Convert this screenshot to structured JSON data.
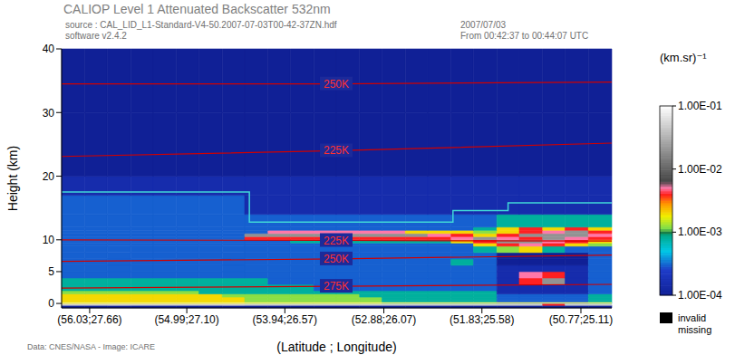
{
  "chart_data": {
    "type": "heatmap",
    "title": "CALIOP Level 1 Attenuated Backscatter 532nm",
    "subtitle": "source : CAL_LID_L1-Standard-V4-50.2007-07-03T00-42-37ZN.hdf",
    "annotations": [
      "software v2.4.2",
      "2007/07/03",
      "From 00:42:37 to 00:44:07 UTC",
      "Data: CNES/NASA - Image: ICARE"
    ],
    "x_label": "(Latitude ; Longitude)",
    "y_label": "Height (km)",
    "xlim": [
      56.33,
      50.44
    ],
    "xticks": [
      {
        "value": 56.03,
        "label": "(56.03;27.66)"
      },
      {
        "value": 54.99,
        "label": "(54.99;27.10)"
      },
      {
        "value": 53.94,
        "label": "(53.94;26.57)"
      },
      {
        "value": 52.88,
        "label": "(52.88;26.07)"
      },
      {
        "value": 51.83,
        "label": "(51.83;25.58)"
      },
      {
        "value": 50.77,
        "label": "(50.77;25.11)"
      }
    ],
    "ylim": [
      -0.7,
      40
    ],
    "yticks": [
      0,
      5,
      10,
      20,
      30,
      40
    ],
    "x_edges": [
      56.33,
      56.08,
      55.84,
      55.59,
      55.35,
      55.1,
      54.86,
      54.61,
      54.37,
      54.12,
      53.88,
      53.63,
      53.39,
      53.14,
      52.9,
      52.65,
      52.41,
      52.16,
      51.92,
      51.67,
      51.43,
      51.18,
      50.94,
      50.69,
      50.44
    ],
    "y_edges": [
      -0.7,
      -0.3,
      0,
      0.5,
      1,
      1.5,
      2,
      3,
      4,
      5,
      6,
      7,
      8,
      9,
      9.5,
      10,
      10.5,
      11,
      11.5,
      12,
      14,
      17,
      20,
      30,
      40
    ],
    "cells": [
      [
        0.0001,
        0.0001,
        0.0001,
        0.0001,
        0.0001,
        0.0001,
        0.0001,
        0.0001,
        0.0001,
        0.0001,
        0.0001,
        0.0001,
        0.0001,
        0.0001,
        0.0001,
        0.0001,
        0.0001,
        0.0001,
        0.0001,
        0.0001,
        0.0001,
        0.0001,
        0.0001,
        0.0001
      ],
      [
        0.05,
        0.05,
        0.05,
        0.05,
        0.05,
        0.05,
        0.05,
        0.05,
        0.05,
        0.05,
        0.05,
        0.05,
        0.05,
        0.05,
        0.05,
        0.05,
        0.05,
        0.05,
        0.05,
        0.05,
        0.05,
        0.004,
        0.05,
        0.05
      ],
      [
        0.002,
        0.002,
        0.002,
        0.002,
        0.002,
        0.002,
        0.002,
        0.002,
        0.0012,
        0.0012,
        0.0012,
        0.0012,
        0.0012,
        0.0012,
        0.0008,
        0.0008,
        0.0008,
        0.0008,
        0.0008,
        0.0003,
        0.0003,
        0.0003,
        0.0003,
        0.0008
      ],
      [
        0.002,
        0.002,
        0.002,
        0.002,
        0.002,
        0.002,
        0.002,
        0.002,
        0.0012,
        0.0012,
        0.0012,
        0.0012,
        0.0012,
        0.0012,
        0.0008,
        0.0008,
        0.0008,
        0.0008,
        0.0008,
        0.0003,
        0.0003,
        0.0003,
        0.0003,
        0.0008
      ],
      [
        0.002,
        0.002,
        0.002,
        0.002,
        0.002,
        0.002,
        0.002,
        0.0012,
        0.0012,
        0.0012,
        0.0012,
        0.0012,
        0.0012,
        0.0008,
        0.0008,
        0.0008,
        0.0008,
        0.0008,
        0.0008,
        0.0003,
        0.0003,
        0.0003,
        0.0003,
        0.0008
      ],
      [
        0.0012,
        0.0012,
        0.0012,
        0.0012,
        0.0012,
        0.0012,
        0.0008,
        0.0008,
        0.0008,
        0.0008,
        0.0008,
        0.0008,
        0.0008,
        0.0008,
        0.0008,
        0.0008,
        0.0008,
        0.0008,
        0.0008,
        0.00015,
        0.00015,
        0.00015,
        0.00015,
        0.0003
      ],
      [
        0.0008,
        0.0008,
        0.0008,
        0.0008,
        0.0008,
        0.0008,
        0.0008,
        0.0008,
        0.0008,
        0.0008,
        0.0008,
        0.0003,
        0.0003,
        0.0003,
        0.0003,
        0.0003,
        0.0003,
        0.0003,
        0.0003,
        0.00015,
        0.00015,
        0.00015,
        0.00015,
        0.0003
      ],
      [
        0.0008,
        0.0008,
        0.0008,
        0.0008,
        0.0008,
        0.0008,
        0.0008,
        0.0008,
        0.0008,
        0.0003,
        0.0003,
        0.0003,
        0.0003,
        0.0003,
        0.0003,
        0.0003,
        0.0003,
        0.0003,
        0.0003,
        0.00015,
        0.004,
        0.02,
        0.00015,
        0.0003
      ],
      [
        0.0003,
        0.0003,
        0.0003,
        0.0003,
        0.0003,
        0.0003,
        0.0003,
        0.0003,
        0.0003,
        0.0003,
        0.0003,
        0.0003,
        0.0003,
        0.0003,
        0.0003,
        0.0003,
        0.0003,
        0.0003,
        0.0003,
        0.00015,
        0.005,
        0.004,
        0.00015,
        0.0003
      ],
      [
        0.0003,
        0.0003,
        0.0003,
        0.0003,
        0.0003,
        0.0003,
        0.0003,
        0.0003,
        0.0003,
        0.0003,
        0.0003,
        0.0003,
        0.0003,
        0.0003,
        0.0003,
        0.0003,
        0.0003,
        0.0003,
        0.0003,
        0.00015,
        0.00015,
        0.00015,
        0.00015,
        0.0003
      ],
      [
        0.0003,
        0.0003,
        0.0003,
        0.0003,
        0.0003,
        0.0003,
        0.0003,
        0.0003,
        0.0003,
        0.0003,
        0.0003,
        0.0003,
        0.0003,
        0.0003,
        0.0003,
        0.0003,
        0.0003,
        0.0008,
        0.0003,
        0.0001,
        0.0001,
        0.0001,
        0.0001,
        0.0003
      ],
      [
        0.0003,
        0.0003,
        0.0003,
        0.0003,
        0.0003,
        0.0003,
        0.0003,
        0.0003,
        0.0003,
        0.0003,
        0.0003,
        0.0003,
        0.0003,
        0.0003,
        0.0003,
        0.0003,
        0.0003,
        0.0003,
        0.0003,
        0.0001,
        0.0001,
        0.0001,
        0.0001,
        0.0003
      ],
      [
        0.0003,
        0.0003,
        0.0003,
        0.0003,
        0.0003,
        0.0003,
        0.0003,
        0.0003,
        0.0003,
        0.0003,
        0.0003,
        0.0003,
        0.0003,
        0.0003,
        0.0003,
        0.0003,
        0.0003,
        0.0003,
        0.0008,
        0.0012,
        0.002,
        0.0008,
        0.0003,
        0.0003
      ],
      [
        0.0003,
        0.0003,
        0.0003,
        0.0003,
        0.0003,
        0.0003,
        0.0003,
        0.0003,
        0.0003,
        0.0003,
        0.0003,
        0.0003,
        0.0003,
        0.0003,
        0.0003,
        0.0003,
        0.0003,
        0.0003,
        0.002,
        0.004,
        0.005,
        0.004,
        0.002,
        0.0012
      ],
      [
        0.0003,
        0.0003,
        0.0003,
        0.0003,
        0.0003,
        0.0003,
        0.0003,
        0.0003,
        0.0003,
        0.0003,
        0.0008,
        0.0008,
        0.0008,
        0.0008,
        0.0008,
        0.0008,
        0.0008,
        0.002,
        0.004,
        0.02,
        0.02,
        0.005,
        0.004,
        0.002
      ],
      [
        0.0003,
        0.0003,
        0.0003,
        0.0003,
        0.0003,
        0.0003,
        0.0003,
        0.0003,
        0.004,
        0.004,
        0.004,
        0.004,
        0.004,
        0.004,
        0.004,
        0.004,
        0.004,
        0.005,
        0.02,
        0.005,
        0.004,
        0.02,
        0.005,
        0.004
      ],
      [
        0.0003,
        0.0003,
        0.0003,
        0.0003,
        0.0003,
        0.0003,
        0.0003,
        0.0003,
        0.02,
        0.02,
        0.02,
        0.02,
        0.02,
        0.02,
        0.02,
        0.02,
        0.005,
        0.004,
        0.002,
        0.004,
        0.02,
        0.02,
        0.02,
        0.005
      ],
      [
        0.0003,
        0.0003,
        0.0003,
        0.0003,
        0.0003,
        0.0003,
        0.0003,
        0.0003,
        0.0003,
        0.005,
        0.005,
        0.005,
        0.005,
        0.005,
        0.005,
        0.002,
        0.002,
        0.002,
        0.0012,
        0.002,
        0.004,
        0.005,
        0.02,
        0.004
      ],
      [
        0.0003,
        0.0003,
        0.0003,
        0.0003,
        0.0003,
        0.0003,
        0.0003,
        0.0003,
        0.0003,
        0.0003,
        0.0003,
        0.0003,
        0.0003,
        0.0003,
        0.0003,
        0.0003,
        0.0003,
        0.0003,
        0.0008,
        0.002,
        0.004,
        0.002,
        0.004,
        0.002
      ],
      [
        0.0003,
        0.0003,
        0.0003,
        0.0003,
        0.0003,
        0.0003,
        0.0003,
        0.0003,
        0.0003,
        0.0003,
        0.0003,
        0.0003,
        0.0003,
        0.0003,
        0.0003,
        0.0003,
        0.0003,
        0.0003,
        0.0003,
        0.0008,
        0.0008,
        0.0008,
        0.0008,
        0.0008
      ],
      [
        0.0003,
        0.0003,
        0.0003,
        0.0003,
        0.0003,
        0.0003,
        0.0003,
        0.0003,
        0.00015,
        0.00015,
        0.00015,
        0.00015,
        0.00015,
        0.00015,
        0.00015,
        0.00015,
        0.00015,
        0.00015,
        0.00015,
        0.00015,
        0.00015,
        0.00015,
        0.00015,
        0.00015
      ],
      [
        0.00015,
        0.00015,
        0.00015,
        0.00015,
        0.00015,
        0.00015,
        0.00015,
        0.00015,
        0.00015,
        0.00015,
        0.00015,
        0.00015,
        0.00015,
        0.00015,
        0.00015,
        0.00015,
        0.00015,
        0.00015,
        0.00015,
        0.00015,
        0.00015,
        0.00015,
        0.00015,
        0.00015
      ],
      [
        0.0001,
        0.0001,
        0.0001,
        0.0001,
        0.0001,
        0.0001,
        0.0001,
        0.0001,
        0.0001,
        0.0001,
        0.0001,
        0.0001,
        0.0001,
        0.0001,
        0.0001,
        0.0001,
        0.0001,
        0.0001,
        0.0001,
        0.0001,
        0.0001,
        0.0001,
        0.0001,
        0.0001
      ],
      [
        0.0001,
        0.0001,
        0.0001,
        0.0001,
        0.0001,
        0.0001,
        0.0001,
        0.0001,
        0.0001,
        0.0001,
        0.0001,
        0.0001,
        0.0001,
        0.0001,
        0.0001,
        0.0001,
        0.0001,
        0.0001,
        0.0001,
        0.0001,
        0.0001,
        0.0001,
        0.0001,
        0.0001
      ]
    ],
    "contours": [
      {
        "name": "250K",
        "color": "#d00000",
        "x": [
          56.33,
          53.39,
          50.44
        ],
        "values": [
          34.5,
          34.5,
          34.8
        ]
      },
      {
        "name": "225K",
        "color": "#d00000",
        "x": [
          56.33,
          53.39,
          50.44
        ],
        "values": [
          23.1,
          24.0,
          25.2
        ]
      },
      {
        "name": "225K",
        "color": "#d00000",
        "x": [
          56.33,
          53.39,
          50.44
        ],
        "values": [
          10.0,
          9.9,
          9.8
        ]
      },
      {
        "name": "250K",
        "color": "#d00000",
        "x": [
          56.33,
          53.39,
          50.44
        ],
        "values": [
          6.6,
          7.0,
          7.6
        ]
      },
      {
        "name": "275K",
        "color": "#d00000",
        "x": [
          56.33,
          53.39,
          50.44
        ],
        "values": [
          2.4,
          2.7,
          3.0
        ]
      }
    ],
    "lines": [
      {
        "color": "#40d8d8",
        "x": [
          56.33,
          54.32,
          54.32,
          52.14,
          52.14,
          51.55,
          51.55,
          50.44
        ],
        "values": [
          17.5,
          17.5,
          12.8,
          12.8,
          14.6,
          14.6,
          15.8,
          15.8
        ]
      },
      {
        "color": "#f0f070",
        "x": [
          56.33,
          50.44
        ],
        "values": [
          0.1,
          0.1
        ]
      }
    ],
    "colorbar": {
      "label": "(km.sr)⁻¹",
      "range": [
        0.0001,
        0.1
      ],
      "log": true,
      "ticks": [
        {
          "value": 0.1,
          "label": "1.00E-01"
        },
        {
          "value": 0.01,
          "label": "1.00E-02"
        },
        {
          "value": 0.001,
          "label": "1.00E-03"
        },
        {
          "value": 0.0001,
          "label": "1.00E-04"
        }
      ],
      "missing": {
        "labels": [
          "invalid",
          "missing"
        ],
        "color": "#000000"
      }
    }
  }
}
